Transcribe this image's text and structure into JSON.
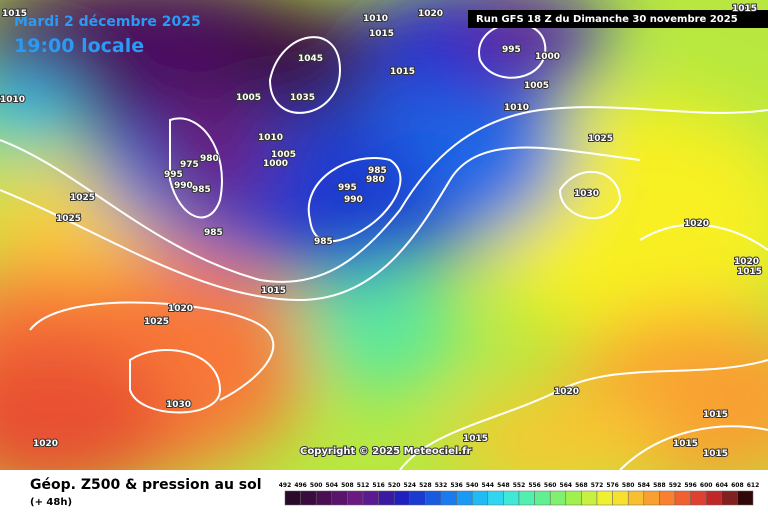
{
  "header": {
    "date": "Mardi 2 décembre 2025",
    "time": "19:00 locale",
    "run": "Run GFS 18 Z du Dimanche 30 novembre 2025"
  },
  "copyright": "Copyright © 2025 Meteociel.fr",
  "footer": {
    "title": "Géop. Z500 & pression au sol",
    "subtitle": "(+ 48h)"
  },
  "legend": {
    "values": [
      492,
      496,
      500,
      504,
      508,
      512,
      516,
      520,
      524,
      528,
      532,
      536,
      540,
      544,
      548,
      552,
      556,
      560,
      564,
      568,
      572,
      576,
      580,
      584,
      588,
      592,
      596,
      600,
      604,
      608,
      612
    ],
    "colors": [
      "#2a0a2a",
      "#3a0b3d",
      "#4a0e55",
      "#5a146b",
      "#6a1a80",
      "#5a1a90",
      "#3a1aa0",
      "#2020c0",
      "#1a3ad0",
      "#1a5ae0",
      "#1a7af0",
      "#1a9af5",
      "#20bbf5",
      "#30d5f0",
      "#40e8d8",
      "#50f0b0",
      "#60f090",
      "#80f070",
      "#a0f050",
      "#c8f040",
      "#f0f030",
      "#f8e030",
      "#f8c030",
      "#f8a030",
      "#f88030",
      "#f06030",
      "#e04030",
      "#c02828",
      "#802020",
      "#300808"
    ]
  },
  "isobars": [
    1015,
    1010,
    1020,
    1015,
    1010,
    1005,
    1045,
    1035,
    1015,
    1010,
    1005,
    1000,
    995,
    1000,
    1005,
    1010,
    1025,
    1030,
    1020,
    1020,
    1015,
    1025,
    1025,
    980,
    975,
    995,
    990,
    985,
    985,
    995,
    980,
    985,
    990,
    985,
    1015,
    1020,
    1025,
    1030,
    1020,
    1015,
    1020,
    1015,
    1015,
    1015,
    1015
  ]
}
